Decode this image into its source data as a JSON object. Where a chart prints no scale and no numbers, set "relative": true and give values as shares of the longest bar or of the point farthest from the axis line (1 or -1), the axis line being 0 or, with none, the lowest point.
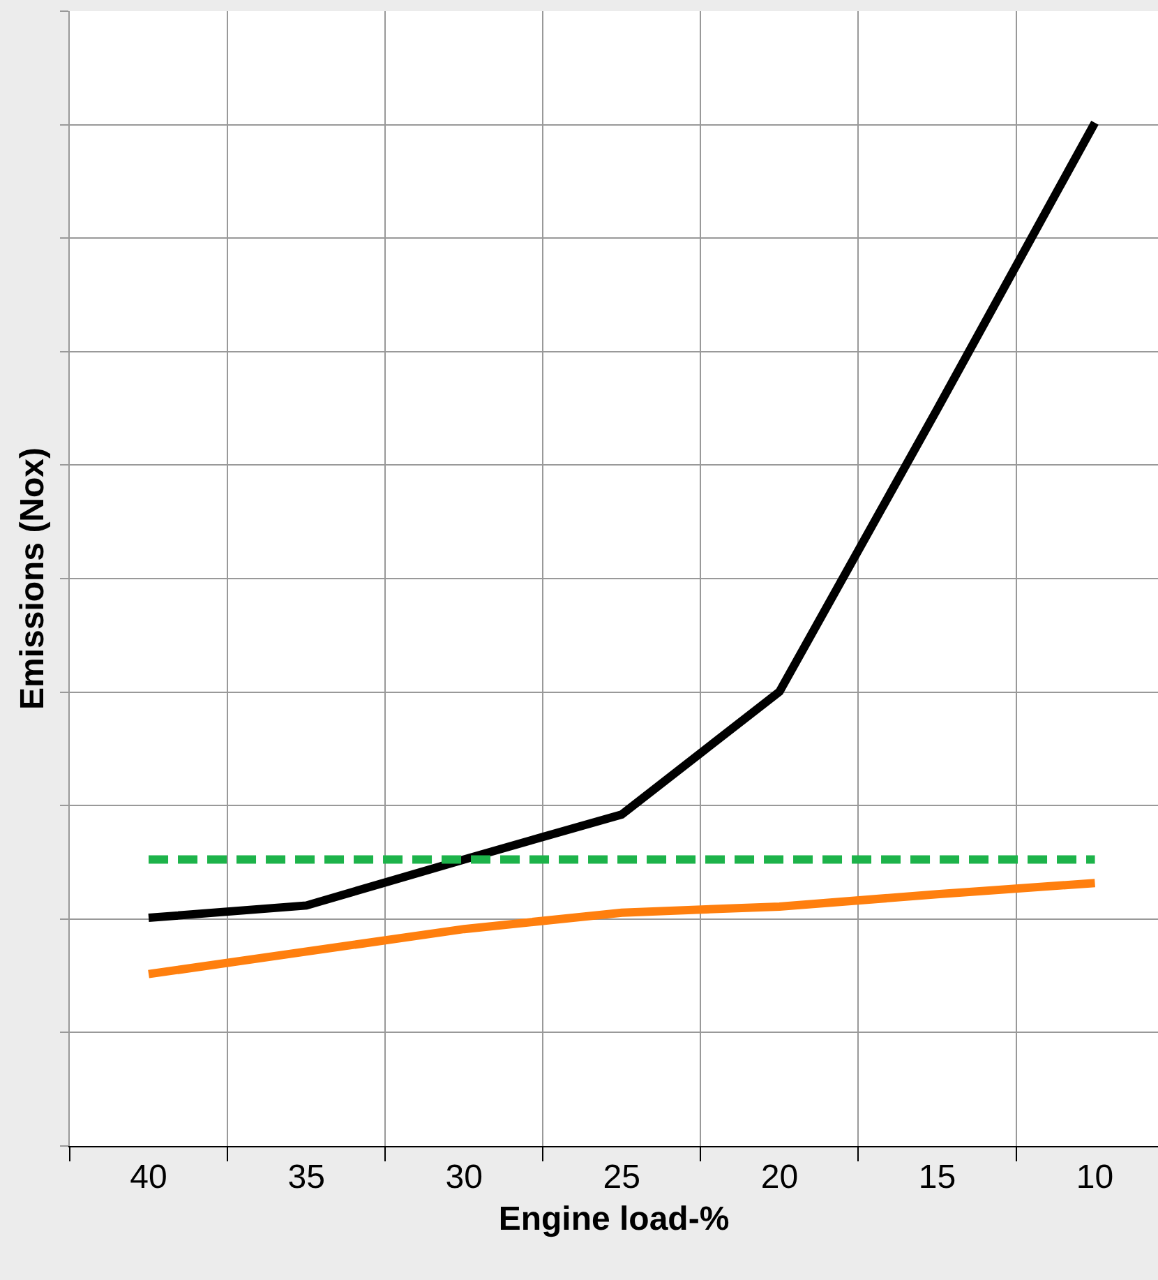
{
  "chart_data": {
    "type": "line",
    "relative": true,
    "xlabel": "Engine load-%",
    "ylabel": "Emissions (Nox)",
    "categories": [
      "40",
      "35",
      "30",
      "25",
      "20",
      "15",
      "10"
    ],
    "series": [
      {
        "color": "#000000",
        "values": [
          0.223,
          0.235,
          0.28,
          0.324,
          0.444,
          0.72,
          1
        ],
        "line_style": "solid"
      },
      {
        "color": "#ff7f0e",
        "values": [
          0.168,
          0.19,
          0.212,
          0.228,
          0.234,
          0.246,
          0.257
        ],
        "line_style": "solid"
      },
      {
        "color": "#1db34a",
        "values": [
          0.28,
          0.28,
          0.28,
          0.28,
          0.28,
          0.28,
          0.28
        ],
        "line_style": "dashed"
      }
    ],
    "grid": true,
    "marker": "none"
  }
}
